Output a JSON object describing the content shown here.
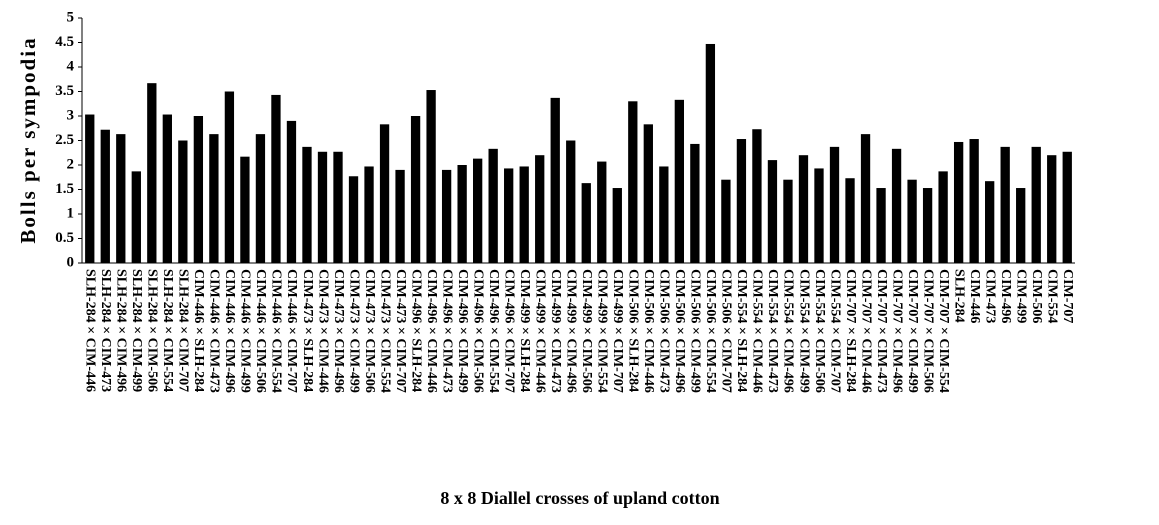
{
  "chart_data": {
    "type": "bar",
    "xlabel": "8 x 8 Diallel crosses of upland cotton",
    "ylabel": "Bolls per sympodia",
    "categories": [
      "SLH-284 × CIM-446",
      "SLH-284 × CIM-473",
      "SLH-284 × CIM-496",
      "SLH-284 × CIM-499",
      "SLH-284 × CIM-506",
      "SLH-284 × CIM-554",
      "SLH-284 × CIM-707",
      "CIM-446 × SLH-284",
      "CIM-446 × CIM-473",
      "CIM-446 × CIM-496",
      "CIM-446 × CIM-499",
      "CIM-446 × CIM-506",
      "CIM-446 × CIM-554",
      "CIM-446 × CIM-707",
      "CIM-473 × SLH-284",
      "CIM-473 × CIM-446",
      "CIM-473 × CIM-496",
      "CIM-473 × CIM-499",
      "CIM-473 × CIM-506",
      "CIM-473 × CIM-554",
      "CIM-473 × CIM-707",
      "CIM-496 × SLH-284",
      "CIM-496 × CIM-446",
      "CIM-496 × CIM-473",
      "CIM-496 × CIM-499",
      "CIM-496 × CIM-506",
      "CIM-496 × CIM-554",
      "CIM-496 × CIM-707",
      "CIM-499 × SLH-284",
      "CIM-499 × CIM-446",
      "CIM-499 × CIM-473",
      "CIM-499 × CIM-496",
      "CIM-499 × CIM-506",
      "CIM-499 × CIM-554",
      "CIM-499 × CIM-707",
      "CIM-506 × SLH-284",
      "CIM-506 × CIM-446",
      "CIM-506 × CIM-473",
      "CIM-506 × CIM-496",
      "CIM-506 × CIM-499",
      "CIM-506 × CIM-554",
      "CIM-506 × CIM-707",
      "CIM-554 × SLH-284",
      "CIM-554 × CIM-446",
      "CIM-554 × CIM-473",
      "CIM-554 × CIM-496",
      "CIM-554 × CIM-499",
      "CIM-554 × CIM-506",
      "CIM-554 × CIM-707",
      "CIM-707 × SLH-284",
      "CIM-707 × CIM-446",
      "CIM-707 × CIM-473",
      "CIM-707 × CIM-496",
      "CIM-707 × CIM-499",
      "CIM-707 × CIM-506",
      "CIM-707 × CIM-554",
      "SLH-284",
      "CIM-446",
      "CIM-473",
      "CIM-496",
      "CIM-499",
      "CIM-506",
      "CIM-554",
      "CIM-707"
    ],
    "values": [
      3.03,
      2.72,
      2.63,
      1.87,
      3.67,
      3.03,
      2.5,
      3.0,
      2.63,
      3.5,
      2.17,
      2.63,
      3.43,
      2.9,
      2.37,
      2.27,
      2.27,
      1.77,
      1.97,
      2.83,
      1.9,
      3.0,
      3.53,
      1.9,
      2.0,
      2.13,
      2.33,
      1.93,
      1.97,
      2.2,
      3.37,
      2.5,
      1.63,
      2.07,
      1.53,
      3.3,
      2.83,
      1.97,
      3.33,
      2.43,
      4.47,
      1.7,
      2.53,
      2.73,
      2.1,
      1.7,
      2.2,
      1.93,
      2.37,
      1.73,
      2.63,
      1.53,
      2.33,
      1.7,
      1.53,
      1.87,
      2.47,
      2.53,
      1.67,
      2.37,
      1.53,
      2.37,
      2.2,
      2.27
    ],
    "color": "#000000",
    "ylim": [
      0,
      5
    ],
    "yticks": [
      0,
      0.5,
      1,
      1.5,
      2,
      2.5,
      3,
      3.5,
      4,
      4.5,
      5
    ],
    "grid": false
  }
}
